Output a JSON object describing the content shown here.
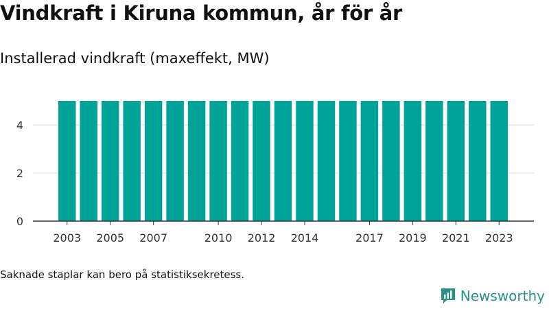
{
  "title": "Vindkraft i Kiruna kommun, år för år",
  "subtitle": "Installerad vindkraft (maxeffekt, MW)",
  "note": "Saknade staplar kan bero på statistiksekretess.",
  "brand": {
    "name": "Newsworthy",
    "logo_icon": "newsworthy-logo-icon",
    "color": "#2a8f86"
  },
  "chart_data": {
    "type": "bar",
    "categories": [
      "2003",
      "2004",
      "2005",
      "2006",
      "2007",
      "2008",
      "2009",
      "2010",
      "2011",
      "2012",
      "2013",
      "2014",
      "2015",
      "2016",
      "2017",
      "2018",
      "2019",
      "2020",
      "2021",
      "2022",
      "2023"
    ],
    "values": [
      5,
      5,
      5,
      5,
      5,
      5,
      5,
      5,
      5,
      5,
      5,
      5,
      5,
      5,
      5,
      5,
      5,
      5,
      5,
      5,
      5
    ],
    "x_tick_labels": [
      "2003",
      "2005",
      "2007",
      "2010",
      "2012",
      "2014",
      "2017",
      "2019",
      "2021",
      "2023"
    ],
    "y_ticks": [
      0,
      2,
      4
    ],
    "ylim": [
      0,
      5
    ],
    "xlabel": "",
    "ylabel": "",
    "bar_color": "#00a398",
    "grid": true
  }
}
